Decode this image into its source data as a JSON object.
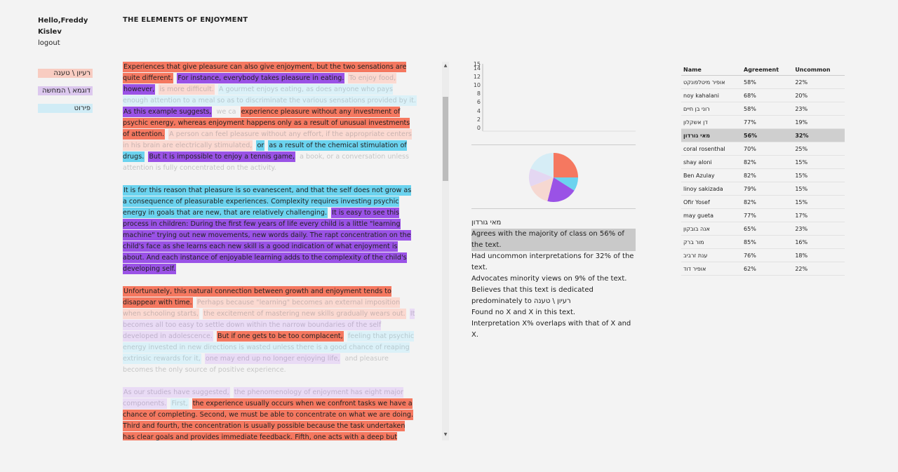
{
  "user": {
    "greeting": "Hello,Freddy",
    "surname": "Kislev",
    "logout_label": "logout"
  },
  "legend": [
    {
      "label": "רעיון \\ טענה",
      "color": "#f57860"
    },
    {
      "label": "דוגמא \\ המחשה",
      "color": "#9a52e6"
    },
    {
      "label": "פירוט",
      "color": "#6bd3ef"
    }
  ],
  "page_title": "THE ELEMENTS OF ENJOYMENT",
  "text": {
    "paragraphs": [
      [
        {
          "t": "Experiences that give pleasure can also give enjoyment, but the two sensations are quite different.",
          "s": "h-red"
        },
        {
          "t": " "
        },
        {
          "t": "For instance, everybody takes pleasure in eating.",
          "s": "h-purple"
        },
        {
          "t": " "
        },
        {
          "t": "To enjoy food,",
          "s": "f-red"
        },
        {
          "t": " "
        },
        {
          "t": "however,",
          "s": "h-purple"
        },
        {
          "t": " "
        },
        {
          "t": "is more difficult.",
          "s": "f-red"
        },
        {
          "t": " "
        },
        {
          "t": "A gourmet enjoys eating, as does anyone who pays enough attention to a meal so as to discriminate the various sensations provided by it.",
          "s": "f-cyan"
        },
        {
          "t": " "
        },
        {
          "t": "As this example suggests,",
          "s": "h-purple"
        },
        {
          "t": " "
        },
        {
          "t": "we ca",
          "s": "plain"
        },
        {
          "t": " "
        },
        {
          "t": "experience pleasure without any investment of psychic energy, whereas enjoyment happens only as a result of unusual investments of attention.",
          "s": "h-red"
        },
        {
          "t": " "
        },
        {
          "t": "A person can feel pleasure without any effort, if the appropriate centers in his brain are electrically stimulated,",
          "s": "f-red"
        },
        {
          "t": " "
        },
        {
          "t": "or",
          "s": "h-cyan"
        },
        {
          "t": " "
        },
        {
          "t": "as a result of the chemical stimulation of drugs.",
          "s": "h-cyan"
        },
        {
          "t": " "
        },
        {
          "t": "But it is impossible to enjoy a tennis game,",
          "s": "h-purple"
        },
        {
          "t": " "
        },
        {
          "t": "a book, or a conversation unless attention is fully concentrated on the activity.",
          "s": "plain"
        }
      ],
      [
        {
          "t": "It is for this reason that pleasure is so evanescent, and that the self does not grow as a consequence of pleasurable experiences. Complexity requires investing psychic energy in goals that are new, that are relatively challenging.",
          "s": "h-cyan"
        },
        {
          "t": " "
        },
        {
          "t": "It is easy to see this process in children: During the first few years of life every child is a little \"learning machine\" trying out new movements, new words daily. The rapt concentration on the child's face as she learns each new skill is a good indication of what enjoyment is about. And each instance of enjoyable learning adds to the complexity of the child's developing self.",
          "s": "h-purple"
        }
      ],
      [
        {
          "t": "Unfortunately, this natural connection between growth and enjoyment tends to disappear with time.",
          "s": "h-red"
        },
        {
          "t": " "
        },
        {
          "t": "Perhaps because \"learning\" becomes an external imposition when schooling starts,",
          "s": "f-red"
        },
        {
          "t": " "
        },
        {
          "t": "the excitement of mastering new skills gradually wears out.",
          "s": "f-red"
        },
        {
          "t": " "
        },
        {
          "t": "It becomes all too easy to settle down within the narrow boundaries of the self developed in adolescence.",
          "s": "f-purple"
        },
        {
          "t": " "
        },
        {
          "t": "But if one gets to be too complacent,",
          "s": "h-red"
        },
        {
          "t": " "
        },
        {
          "t": "feeling that psychic energy invested in new directions is wasted unless there is a good chance of reaping extrinsic rewards for it,",
          "s": "f-cyan"
        },
        {
          "t": " "
        },
        {
          "t": "one may end up no longer enjoying life,",
          "s": "f-purple"
        },
        {
          "t": " "
        },
        {
          "t": "and pleasure becomes the only source of positive experience.",
          "s": "plain"
        }
      ],
      [
        {
          "t": "As our studies have suggested,",
          "s": "f-purple"
        },
        {
          "t": " "
        },
        {
          "t": "the phenomenology of enjoyment has eight major components.",
          "s": "f-purple"
        },
        {
          "t": " "
        },
        {
          "t": "First,",
          "s": "f-cyan"
        },
        {
          "t": " "
        },
        {
          "t": "the experience usually occurs when we confront tasks we have a chance of completing. Second, we must be able to concentrate on what we are doing. Third and fourth, the concentration is usually possible because the task undertaken has clear goals and provides immediate feedback. Fifth, one acts with a deep but effortless involvement that removes from awareness the worries and frustrations of everyday life.",
          "s": "h-red"
        }
      ]
    ]
  },
  "bar_chart": {
    "y_ticks": [
      "15",
      "14",
      "12",
      "10",
      "8",
      "6",
      "4",
      "2",
      "0"
    ]
  },
  "pie": [
    {
      "name": "רעיון \\ טענה",
      "value": 25,
      "color": "#f57860"
    },
    {
      "name": "פירוט",
      "value": 9,
      "color": "#6bd3ef"
    },
    {
      "name": "דוגמא \\ המחשה",
      "value": 20,
      "color": "#9a52e6"
    },
    {
      "name": "f-red",
      "value": 15,
      "color": "#f6d8d1"
    },
    {
      "name": "f-purple",
      "value": 12,
      "color": "#e4d7f2"
    },
    {
      "name": "f-cyan",
      "value": 19,
      "color": "#d6edf6"
    }
  ],
  "stats": {
    "name": "מאי גורדון",
    "lines": [
      "Agrees with the majority of class on 56% of the text.",
      "Had uncommon interpretations for 32% of the text.",
      "Advocates minority views on 9% of the text.",
      "Believes that this text is dedicated predominately to רעיון \\ טענה",
      "Found no X and X in this text.",
      "Interpretation X% overlaps with that of X and X."
    ]
  },
  "table": {
    "headers": [
      "Name",
      "Agreement",
      "Uncommon"
    ],
    "rows": [
      [
        "אופיר מיטלפונקט",
        "58%",
        "22%"
      ],
      [
        "noy kahalani",
        "68%",
        "20%"
      ],
      [
        "רוני בן חיים",
        "58%",
        "23%"
      ],
      [
        "דן אשקלון",
        "77%",
        "19%"
      ],
      [
        "מאי גורדון",
        "56%",
        "32%"
      ],
      [
        "coral rosenthal",
        "70%",
        "25%"
      ],
      [
        "shay aloni",
        "82%",
        "15%"
      ],
      [
        "Ben Azulay",
        "82%",
        "15%"
      ],
      [
        "linoy sakizada",
        "79%",
        "15%"
      ],
      [
        "Ofir Yosef",
        "82%",
        "15%"
      ],
      [
        "may gueta",
        "77%",
        "17%"
      ],
      [
        "אנה בובקון",
        "65%",
        "23%"
      ],
      [
        "מור ברק",
        "85%",
        "16%"
      ],
      [
        "ענת זרביב",
        "76%",
        "18%"
      ],
      [
        "אופיר דוד",
        "62%",
        "22%"
      ]
    ],
    "selected_index": 4
  }
}
